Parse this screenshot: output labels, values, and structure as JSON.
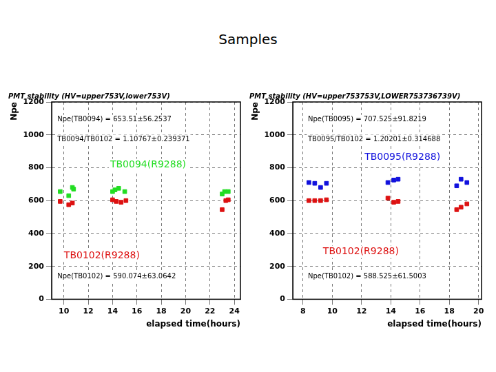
{
  "title": "Samples",
  "chart_data": [
    {
      "type": "scatter",
      "title": "PMT stability (HV=upper753V,lower753V)",
      "x_label": "elapsed time(hours)",
      "y_label": "Npe",
      "xlim": [
        9,
        24.5
      ],
      "xticks": [
        10,
        12,
        14,
        16,
        18,
        20,
        22,
        24
      ],
      "ylim": [
        0,
        1200
      ],
      "yticks": [
        0,
        200,
        400,
        600,
        800,
        1000,
        1200
      ],
      "grid": true,
      "marker": "square",
      "annotations": [
        "Npe(TB0094) = 653.51±56.2537",
        "TB0094/TB0102 = 1.10767±0.239371",
        "Npe(TB0102) = 590.074±63.0642"
      ],
      "series": [
        {
          "name": "TB0094(R9288)",
          "color": "#22dd22",
          "x": [
            9.7,
            10.4,
            10.7,
            10.8,
            14.0,
            14.2,
            14.5,
            15.0,
            23.0,
            23.2,
            23.5
          ],
          "values": [
            655,
            630,
            680,
            670,
            655,
            665,
            675,
            655,
            640,
            655,
            655
          ]
        },
        {
          "name": "TB0102(R9288)",
          "color": "#dd1111",
          "x": [
            9.7,
            10.4,
            10.7,
            14.0,
            14.3,
            14.7,
            15.1,
            23.0,
            23.3,
            23.5
          ],
          "values": [
            595,
            575,
            585,
            605,
            595,
            590,
            600,
            545,
            600,
            605
          ]
        }
      ]
    },
    {
      "type": "scatter",
      "title": "PMT stability (HV=upper753753V,LOWER753736739V)",
      "x_label": "elapsed time(hours)",
      "y_label": "Npe",
      "xlim": [
        7.3,
        20.2
      ],
      "xticks": [
        8,
        10,
        12,
        14,
        16,
        18,
        20
      ],
      "ylim": [
        0,
        1200
      ],
      "yticks": [
        0,
        200,
        400,
        600,
        800,
        1000,
        1200
      ],
      "grid": true,
      "marker": "square",
      "annotations": [
        "Npe(TB0095) = 707.525±91.8219",
        "TB0095/TB0102 = 1.20201±0.314688",
        "Npe(TB0102) = 588.525±61.5003"
      ],
      "series": [
        {
          "name": "TB0095(R9288)",
          "color": "#1111dd",
          "x": [
            8.4,
            8.8,
            9.2,
            9.6,
            13.8,
            14.2,
            14.5,
            18.5,
            18.8,
            19.2
          ],
          "values": [
            710,
            705,
            680,
            705,
            710,
            725,
            730,
            690,
            730,
            710
          ]
        },
        {
          "name": "TB0102(R9288)",
          "color": "#dd1111",
          "x": [
            8.4,
            8.8,
            9.2,
            9.6,
            13.8,
            14.2,
            14.5,
            18.5,
            18.8,
            19.2
          ],
          "values": [
            600,
            600,
            600,
            605,
            615,
            590,
            595,
            545,
            560,
            580
          ]
        }
      ]
    }
  ]
}
